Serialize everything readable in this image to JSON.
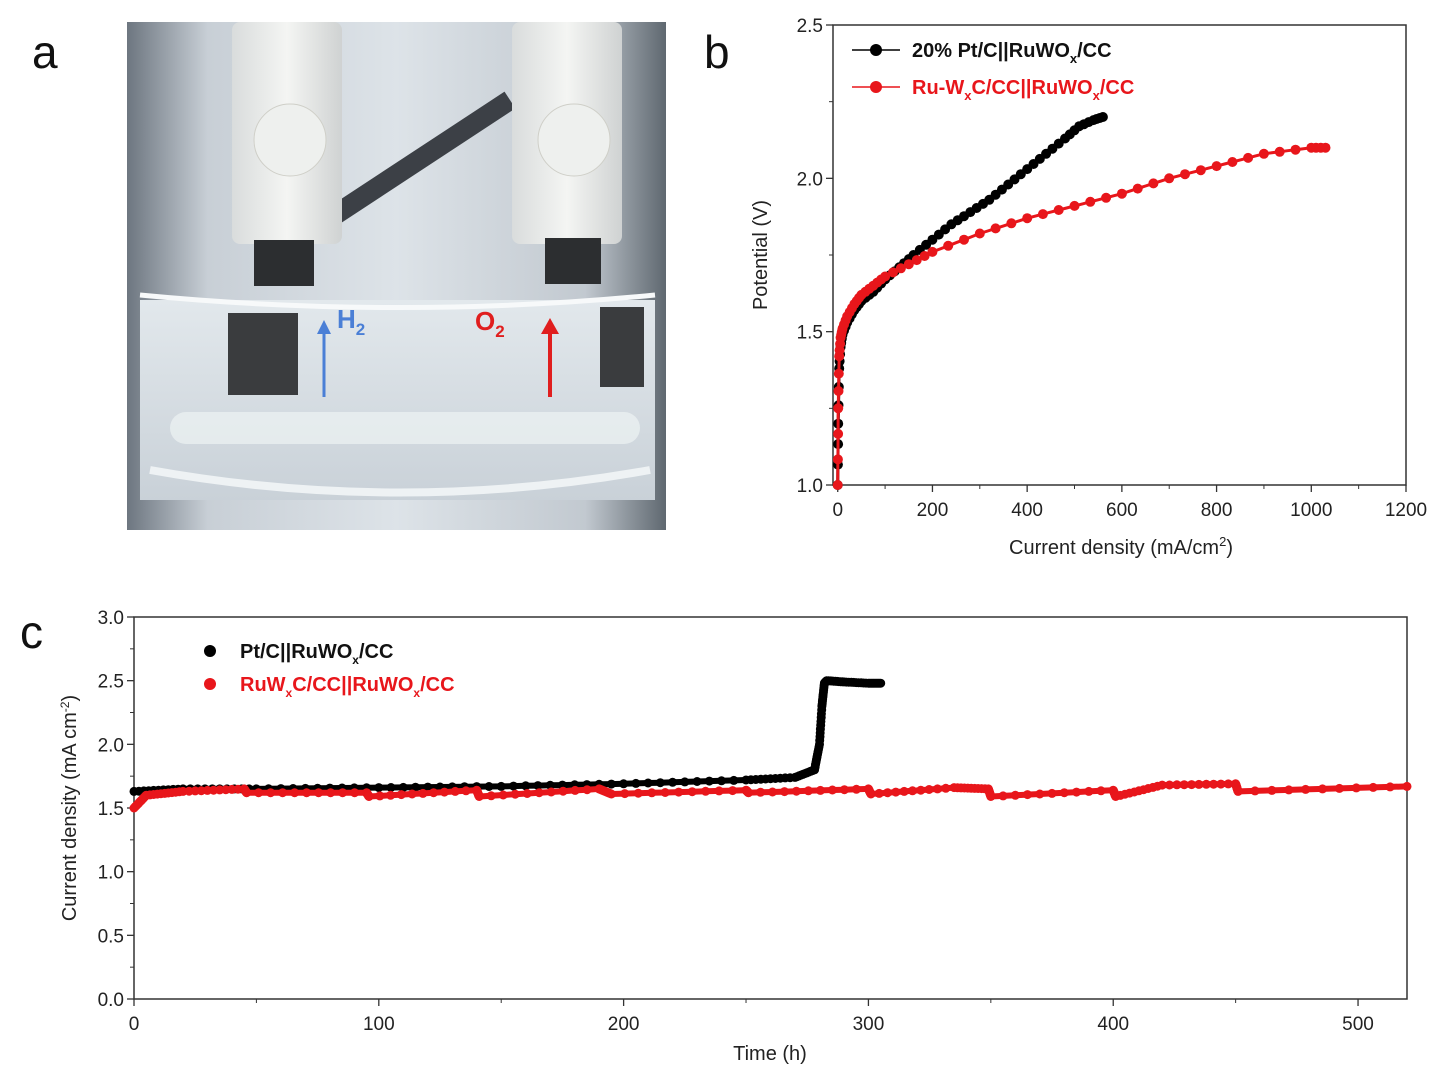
{
  "panel_labels": {
    "a": "a",
    "b": "b",
    "c": "c"
  },
  "photo": {
    "h2_label": "H",
    "h2_sub": "2",
    "o2_label": "O",
    "o2_sub": "2",
    "h2_color": "#4a7fd6",
    "o2_color": "#e01e1e"
  },
  "colors": {
    "black_series": "#000000",
    "red_series": "#e8161b"
  },
  "chart_data": [
    {
      "id": "b",
      "type": "line",
      "xlabel_main": "Current density (mA/cm",
      "xlabel_sup": "2",
      "xlabel_end": ")",
      "ylabel": "Potential (V)",
      "xlim": [
        -10,
        1200
      ],
      "ylim": [
        1.0,
        2.5
      ],
      "xticks": [
        0,
        200,
        400,
        600,
        800,
        1000,
        1200
      ],
      "yticks": [
        1.0,
        1.5,
        2.0,
        2.5
      ],
      "ytick_labels": [
        "1.0",
        "1.5",
        "2.0",
        "2.5"
      ],
      "legend_position": "top-left",
      "series": [
        {
          "name": "20% Pt/C||RuWOx/CC",
          "legend": {
            "pre": "20% Pt/C||RuWO",
            "sub": "x",
            "post": "/CC"
          },
          "color": "#000000",
          "x": [
            0,
            1,
            3,
            6,
            10,
            20,
            35,
            50,
            75,
            100,
            130,
            160,
            200,
            240,
            280,
            320,
            360,
            400,
            440,
            480,
            510,
            540,
            560
          ],
          "y": [
            1.0,
            1.2,
            1.38,
            1.45,
            1.49,
            1.53,
            1.57,
            1.6,
            1.63,
            1.67,
            1.71,
            1.75,
            1.8,
            1.85,
            1.89,
            1.93,
            1.98,
            2.03,
            2.08,
            2.13,
            2.17,
            2.19,
            2.2
          ]
        },
        {
          "name": "Ru-WxC/CC||RuWOx/CC",
          "legend": {
            "pre": "Ru-W",
            "sub": "x",
            "mid": "C/CC||RuWO",
            "sub2": "x",
            "post": "/CC"
          },
          "color": "#e8161b",
          "x": [
            0,
            1,
            3,
            6,
            10,
            20,
            35,
            50,
            75,
            100,
            150,
            200,
            300,
            400,
            500,
            600,
            700,
            800,
            900,
            1000,
            1030
          ],
          "y": [
            1.0,
            1.25,
            1.42,
            1.48,
            1.51,
            1.55,
            1.59,
            1.62,
            1.65,
            1.68,
            1.72,
            1.76,
            1.82,
            1.87,
            1.91,
            1.95,
            2.0,
            2.04,
            2.08,
            2.1,
            2.1
          ]
        }
      ]
    },
    {
      "id": "c",
      "type": "scatter",
      "xlabel": "Time (h)",
      "ylabel_main": "Current density (mA cm",
      "ylabel_sup": "-2",
      "ylabel_end": ")",
      "xlim": [
        0,
        520
      ],
      "ylim": [
        0.0,
        3.0
      ],
      "xticks": [
        0,
        100,
        200,
        300,
        400,
        500
      ],
      "yticks": [
        0.0,
        0.5,
        1.0,
        1.5,
        2.0,
        2.5,
        3.0
      ],
      "ytick_labels": [
        "0.0",
        "0.5",
        "1.0",
        "1.5",
        "2.0",
        "2.5",
        "3.0"
      ],
      "legend_position": "top-left",
      "series": [
        {
          "name": "Pt/C||RuWOx/CC",
          "legend": {
            "pre": "Pt/C||RuWO",
            "sub": "x",
            "post": "/CC"
          },
          "color": "#000000",
          "x": [
            0,
            20,
            50,
            100,
            150,
            200,
            250,
            270,
            278,
            280,
            281,
            282,
            283,
            290,
            300,
            305
          ],
          "y": [
            1.63,
            1.65,
            1.65,
            1.66,
            1.67,
            1.69,
            1.72,
            1.74,
            1.8,
            2.0,
            2.3,
            2.48,
            2.5,
            2.49,
            2.48,
            2.48
          ]
        },
        {
          "name": "RuWxC/CC||RuWOx/CC",
          "legend": {
            "pre": "RuW",
            "sub": "x",
            "mid": "C/CC||RuWO",
            "sub2": "x",
            "post": "/CC"
          },
          "color": "#e8161b",
          "x": [
            0,
            5,
            20,
            45,
            46,
            95,
            96,
            140,
            141,
            190,
            195,
            250,
            251,
            300,
            301,
            335,
            349,
            350,
            400,
            401,
            420,
            450,
            451,
            520
          ],
          "y": [
            1.5,
            1.6,
            1.63,
            1.65,
            1.62,
            1.62,
            1.59,
            1.64,
            1.59,
            1.65,
            1.61,
            1.64,
            1.62,
            1.65,
            1.61,
            1.66,
            1.65,
            1.59,
            1.64,
            1.59,
            1.68,
            1.69,
            1.63,
            1.67
          ]
        }
      ]
    }
  ]
}
